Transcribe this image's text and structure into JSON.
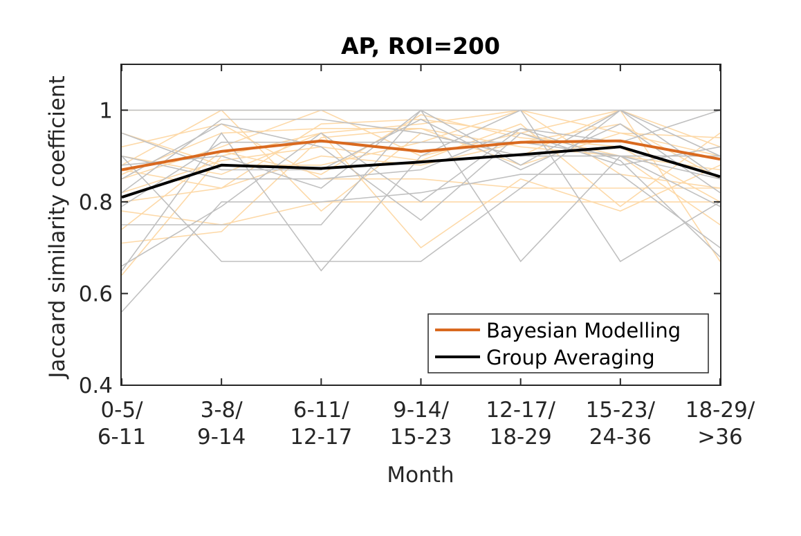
{
  "chart_data": {
    "type": "line",
    "title": "AP, ROI=200",
    "xlabel": "Month",
    "ylabel": "Jaccard similarity coefficient",
    "categories": [
      [
        "0-5/",
        "6-11"
      ],
      [
        "3-8/",
        "9-14"
      ],
      [
        "6-11/",
        "12-17"
      ],
      [
        "9-14/",
        "15-23"
      ],
      [
        "12-17/",
        "18-29"
      ],
      [
        "15-23/",
        "24-36"
      ],
      [
        "18-29/",
        ">36"
      ]
    ],
    "ylim": [
      0.4,
      1.1
    ],
    "yticks": [
      0.4,
      0.6,
      0.8,
      1
    ],
    "ytick_labels": [
      "0.4",
      "0.6",
      "0.8",
      "1"
    ],
    "grid": false,
    "legend": {
      "placement": "bottom-right"
    },
    "series": [
      {
        "name": "Bayesian Modelling",
        "color": "#d9691f",
        "values": [
          0.87,
          0.91,
          0.933,
          0.91,
          0.93,
          0.933,
          0.893
        ]
      },
      {
        "name": "Group Averaging",
        "color": "#000000",
        "values": [
          0.81,
          0.88,
          0.873,
          0.887,
          0.903,
          0.92,
          0.855
        ]
      }
    ],
    "background_series_colors": {
      "bayesian_subjects": "#fdd9a8",
      "group_subjects": "#c0c0c0"
    },
    "bayesian_subjects": [
      [
        1.0,
        1.0,
        1.0,
        1.0,
        1.0,
        1.0,
        1.0
      ],
      [
        0.9,
        0.86,
        0.95,
        0.97,
        1.0,
        0.95,
        0.9
      ],
      [
        0.85,
        0.92,
        1.0,
        0.9,
        0.95,
        1.0,
        0.92
      ],
      [
        0.8,
        0.83,
        0.9,
        0.88,
        0.93,
        0.97,
        0.85
      ],
      [
        0.71,
        0.735,
        0.94,
        0.96,
        0.92,
        0.9,
        0.75
      ],
      [
        0.64,
        0.9,
        0.95,
        0.7,
        0.85,
        0.78,
        0.88
      ],
      [
        0.88,
        1.0,
        0.78,
        0.95,
        0.9,
        1.0,
        0.67
      ],
      [
        0.95,
        0.88,
        0.88,
        0.93,
        1.0,
        0.86,
        0.83
      ],
      [
        0.78,
        0.75,
        0.8,
        0.8,
        0.8,
        0.8,
        0.8
      ],
      [
        0.87,
        0.83,
        0.97,
        0.98,
        0.95,
        0.9,
        0.87
      ],
      [
        0.92,
        0.97,
        0.85,
        0.85,
        0.83,
        0.83,
        0.83
      ],
      [
        0.86,
        0.95,
        0.96,
        0.96,
        0.88,
        0.95,
        0.94
      ],
      [
        0.82,
        0.89,
        0.92,
        0.89,
        0.97,
        0.79,
        0.95
      ],
      [
        0.74,
        0.91,
        0.86,
        0.99,
        0.94,
        0.92,
        0.8
      ]
    ],
    "group_subjects": [
      [
        1.0,
        1.0,
        1.0,
        1.0,
        1.0,
        1.0,
        1.0
      ],
      [
        0.9,
        0.67,
        0.67,
        0.67,
        0.83,
        1.0,
        0.9
      ],
      [
        0.75,
        0.75,
        0.75,
        1.0,
        0.67,
        0.9,
        0.85
      ],
      [
        0.65,
        0.95,
        0.65,
        0.9,
        1.0,
        0.67,
        0.8
      ],
      [
        0.56,
        0.8,
        0.8,
        0.82,
        0.86,
        0.86,
        0.7
      ],
      [
        0.85,
        0.97,
        0.92,
        0.76,
        0.95,
        0.88,
        0.92
      ],
      [
        0.82,
        0.98,
        0.98,
        0.95,
        0.9,
        0.9,
        0.79
      ],
      [
        0.88,
        0.9,
        0.83,
        1.0,
        0.88,
        1.0,
        0.85
      ],
      [
        0.79,
        0.93,
        0.93,
        0.93,
        0.93,
        0.9,
        0.9
      ],
      [
        0.9,
        0.85,
        0.85,
        0.87,
        0.96,
        0.89,
        0.68
      ],
      [
        0.66,
        0.79,
        0.95,
        0.8,
        0.96,
        0.93,
        1.0
      ],
      [
        0.95,
        0.87,
        0.87,
        0.98,
        0.87,
        0.97,
        0.82
      ]
    ]
  }
}
